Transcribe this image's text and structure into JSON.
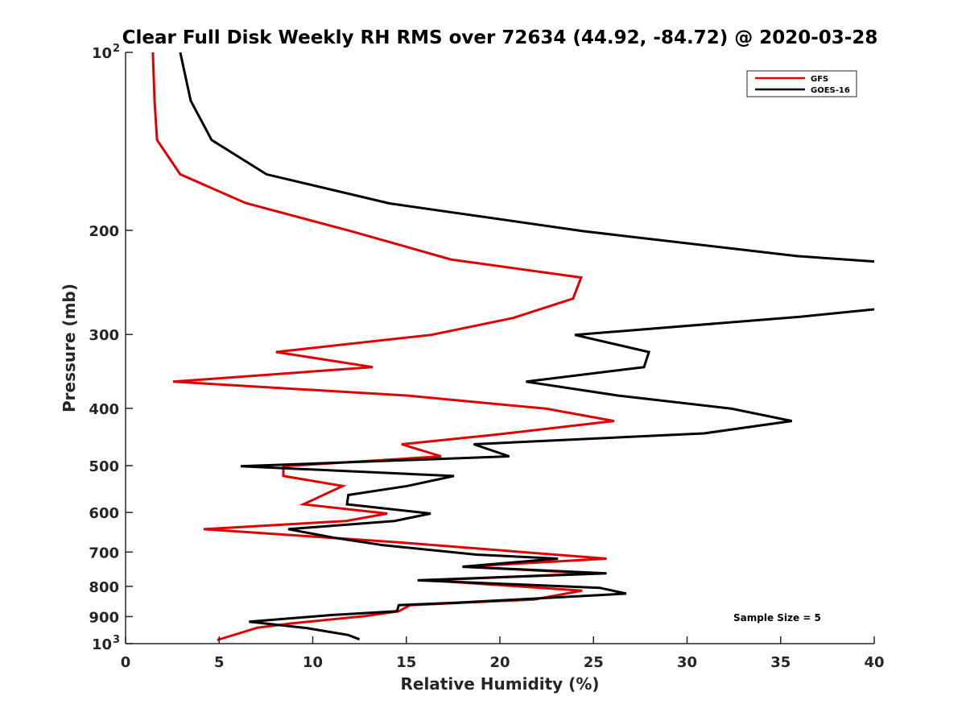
{
  "chart_data": {
    "type": "line",
    "title": "Clear Full Disk Weekly RH RMS over 72634 (44.92, -84.72) @ 2020-03-28",
    "xlabel": "Relative Humidity (%)",
    "ylabel": "Pressure (mb)",
    "xlim": [
      0,
      40
    ],
    "ylim": [
      1000,
      100
    ],
    "yscale": "log",
    "yreversed": true,
    "grid": false,
    "legend_position": "top-right",
    "x_ticks": [
      0,
      5,
      10,
      15,
      20,
      25,
      30,
      35,
      40
    ],
    "x_tick_labels": [
      "0",
      "5",
      "10",
      "15",
      "20",
      "25",
      "30",
      "35",
      "40"
    ],
    "y_ticks": [
      {
        "value": 100,
        "base": "10",
        "exp": "2"
      },
      {
        "value": 200,
        "label": "200"
      },
      {
        "value": 300,
        "label": "300"
      },
      {
        "value": 400,
        "label": "400"
      },
      {
        "value": 500,
        "label": "500"
      },
      {
        "value": 600,
        "label": "600"
      },
      {
        "value": 700,
        "label": "700"
      },
      {
        "value": 800,
        "label": "800"
      },
      {
        "value": 900,
        "label": "900"
      },
      {
        "value": 1000,
        "base": "10",
        "exp": "3"
      }
    ],
    "annotation": "Sample Size = 5",
    "series": [
      {
        "name": "GFS",
        "color": "#e00000",
        "points": [
          [
            1.46,
            100
          ],
          [
            1.55,
            120.7
          ],
          [
            1.68,
            140.7
          ],
          [
            2.92,
            160.8
          ],
          [
            6.41,
            179.8
          ],
          [
            12.04,
            200.6
          ],
          [
            17.38,
            224.0
          ],
          [
            24.34,
            240.3
          ],
          [
            23.91,
            260.9
          ],
          [
            20.69,
            281.4
          ],
          [
            16.34,
            300.5
          ],
          [
            8.04,
            321.2
          ],
          [
            13.2,
            340.6
          ],
          [
            2.54,
            360.5
          ],
          [
            15.0,
            380.5
          ],
          [
            22.5,
            400.6
          ],
          [
            26.1,
            420.2
          ],
          [
            19.7,
            443.5
          ],
          [
            14.75,
            460.1
          ],
          [
            16.86,
            482.2
          ],
          [
            8.43,
            501.2
          ],
          [
            8.43,
            520.5
          ],
          [
            11.6,
            541.3
          ],
          [
            9.5,
            581.2
          ],
          [
            13.98,
            602.5
          ],
          [
            11.78,
            620.1
          ],
          [
            4.17,
            640.4
          ],
          [
            14.6,
            674.2
          ],
          [
            25.7,
            718.2
          ],
          [
            18.0,
            741.2
          ],
          [
            25.0,
            760.4
          ],
          [
            16.2,
            781.4
          ],
          [
            24.4,
            813.4
          ],
          [
            21.8,
            842.1
          ],
          [
            15.2,
            860.8
          ],
          [
            14.6,
            881.5
          ],
          [
            12.8,
            898.2
          ],
          [
            8.77,
            924.8
          ],
          [
            7.05,
            939.8
          ],
          [
            4.9,
            985.9
          ]
        ]
      },
      {
        "name": "GOES-16",
        "color": "#000000",
        "points": [
          [
            2.92,
            100
          ],
          [
            3.48,
            120.7
          ],
          [
            4.6,
            140.7
          ],
          [
            7.53,
            160.8
          ],
          [
            14.1,
            180.1
          ],
          [
            24.43,
            200.6
          ],
          [
            35.87,
            221.1
          ],
          [
            41.0,
            227.0
          ],
          [
            48.0,
            250.0
          ],
          [
            41.0,
            270.0
          ],
          [
            36.1,
            279.9
          ],
          [
            24.0,
            300.5
          ],
          [
            27.96,
            321.2
          ],
          [
            27.7,
            340.6
          ],
          [
            21.4,
            360.5
          ],
          [
            26.3,
            380.5
          ],
          [
            32.4,
            400.6
          ],
          [
            35.6,
            420.2
          ],
          [
            30.9,
            441.0
          ],
          [
            18.6,
            460.1
          ],
          [
            20.5,
            482.2
          ],
          [
            6.15,
            501.2
          ],
          [
            17.55,
            520.5
          ],
          [
            15.05,
            541.3
          ],
          [
            11.9,
            560.5
          ],
          [
            11.83,
            581.2
          ],
          [
            16.3,
            602.5
          ],
          [
            14.37,
            620.1
          ],
          [
            8.69,
            640.4
          ],
          [
            11.18,
            662.3
          ],
          [
            13.76,
            681.6
          ],
          [
            18.75,
            707.0
          ],
          [
            23.1,
            718.2
          ],
          [
            18.0,
            741.2
          ],
          [
            25.7,
            760.4
          ],
          [
            15.6,
            781.4
          ],
          [
            25.33,
            804.6
          ],
          [
            26.75,
            823.0
          ],
          [
            17.63,
            853.0
          ],
          [
            14.6,
            860.8
          ],
          [
            14.5,
            881.5
          ],
          [
            11.0,
            894.6
          ],
          [
            6.6,
            918.3
          ],
          [
            9.65,
            941.0
          ],
          [
            11.9,
            967.0
          ],
          [
            12.5,
            983.5
          ]
        ]
      }
    ]
  }
}
